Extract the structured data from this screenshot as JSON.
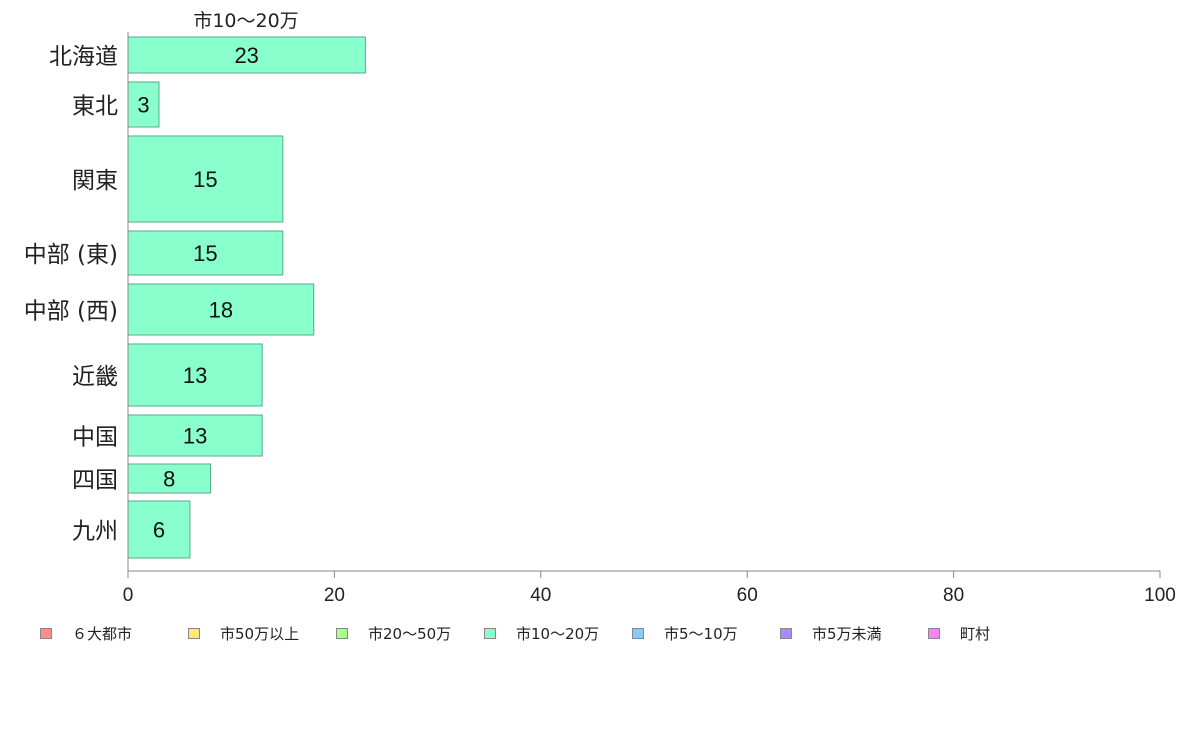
{
  "chart_data": {
    "type": "bar",
    "orientation": "horizontal",
    "categories": [
      "北海道",
      "東北",
      "関東",
      "中部 (東)",
      "中部 (西)",
      "近畿",
      "中国",
      "四国",
      "九州"
    ],
    "series": [
      {
        "name": "市10〜20万",
        "color": "#88ffcc",
        "values": [
          23,
          3,
          15,
          15,
          18,
          13,
          13,
          8,
          6
        ],
        "labels": [
          "23",
          "3",
          "15",
          "15",
          "18",
          "13",
          "13",
          "8",
          "6"
        ]
      }
    ],
    "series_title": "市10〜20万",
    "xlim": [
      0,
      100
    ],
    "xticks": [
      "0",
      "20",
      "40",
      "60",
      "80",
      "100"
    ],
    "grid": false,
    "legend_position": "bottom",
    "legend": [
      {
        "label": "６大都市",
        "color": "#ff8c8c"
      },
      {
        "label": "市50万以上",
        "color": "#ffe680"
      },
      {
        "label": "市20〜50万",
        "color": "#aaff88"
      },
      {
        "label": "市10〜20万",
        "color": "#88ffcc"
      },
      {
        "label": "市5〜10万",
        "color": "#88ccff"
      },
      {
        "label": "市5万未満",
        "color": "#aa88ff"
      },
      {
        "label": "町村",
        "color": "#ff80ee"
      }
    ]
  }
}
